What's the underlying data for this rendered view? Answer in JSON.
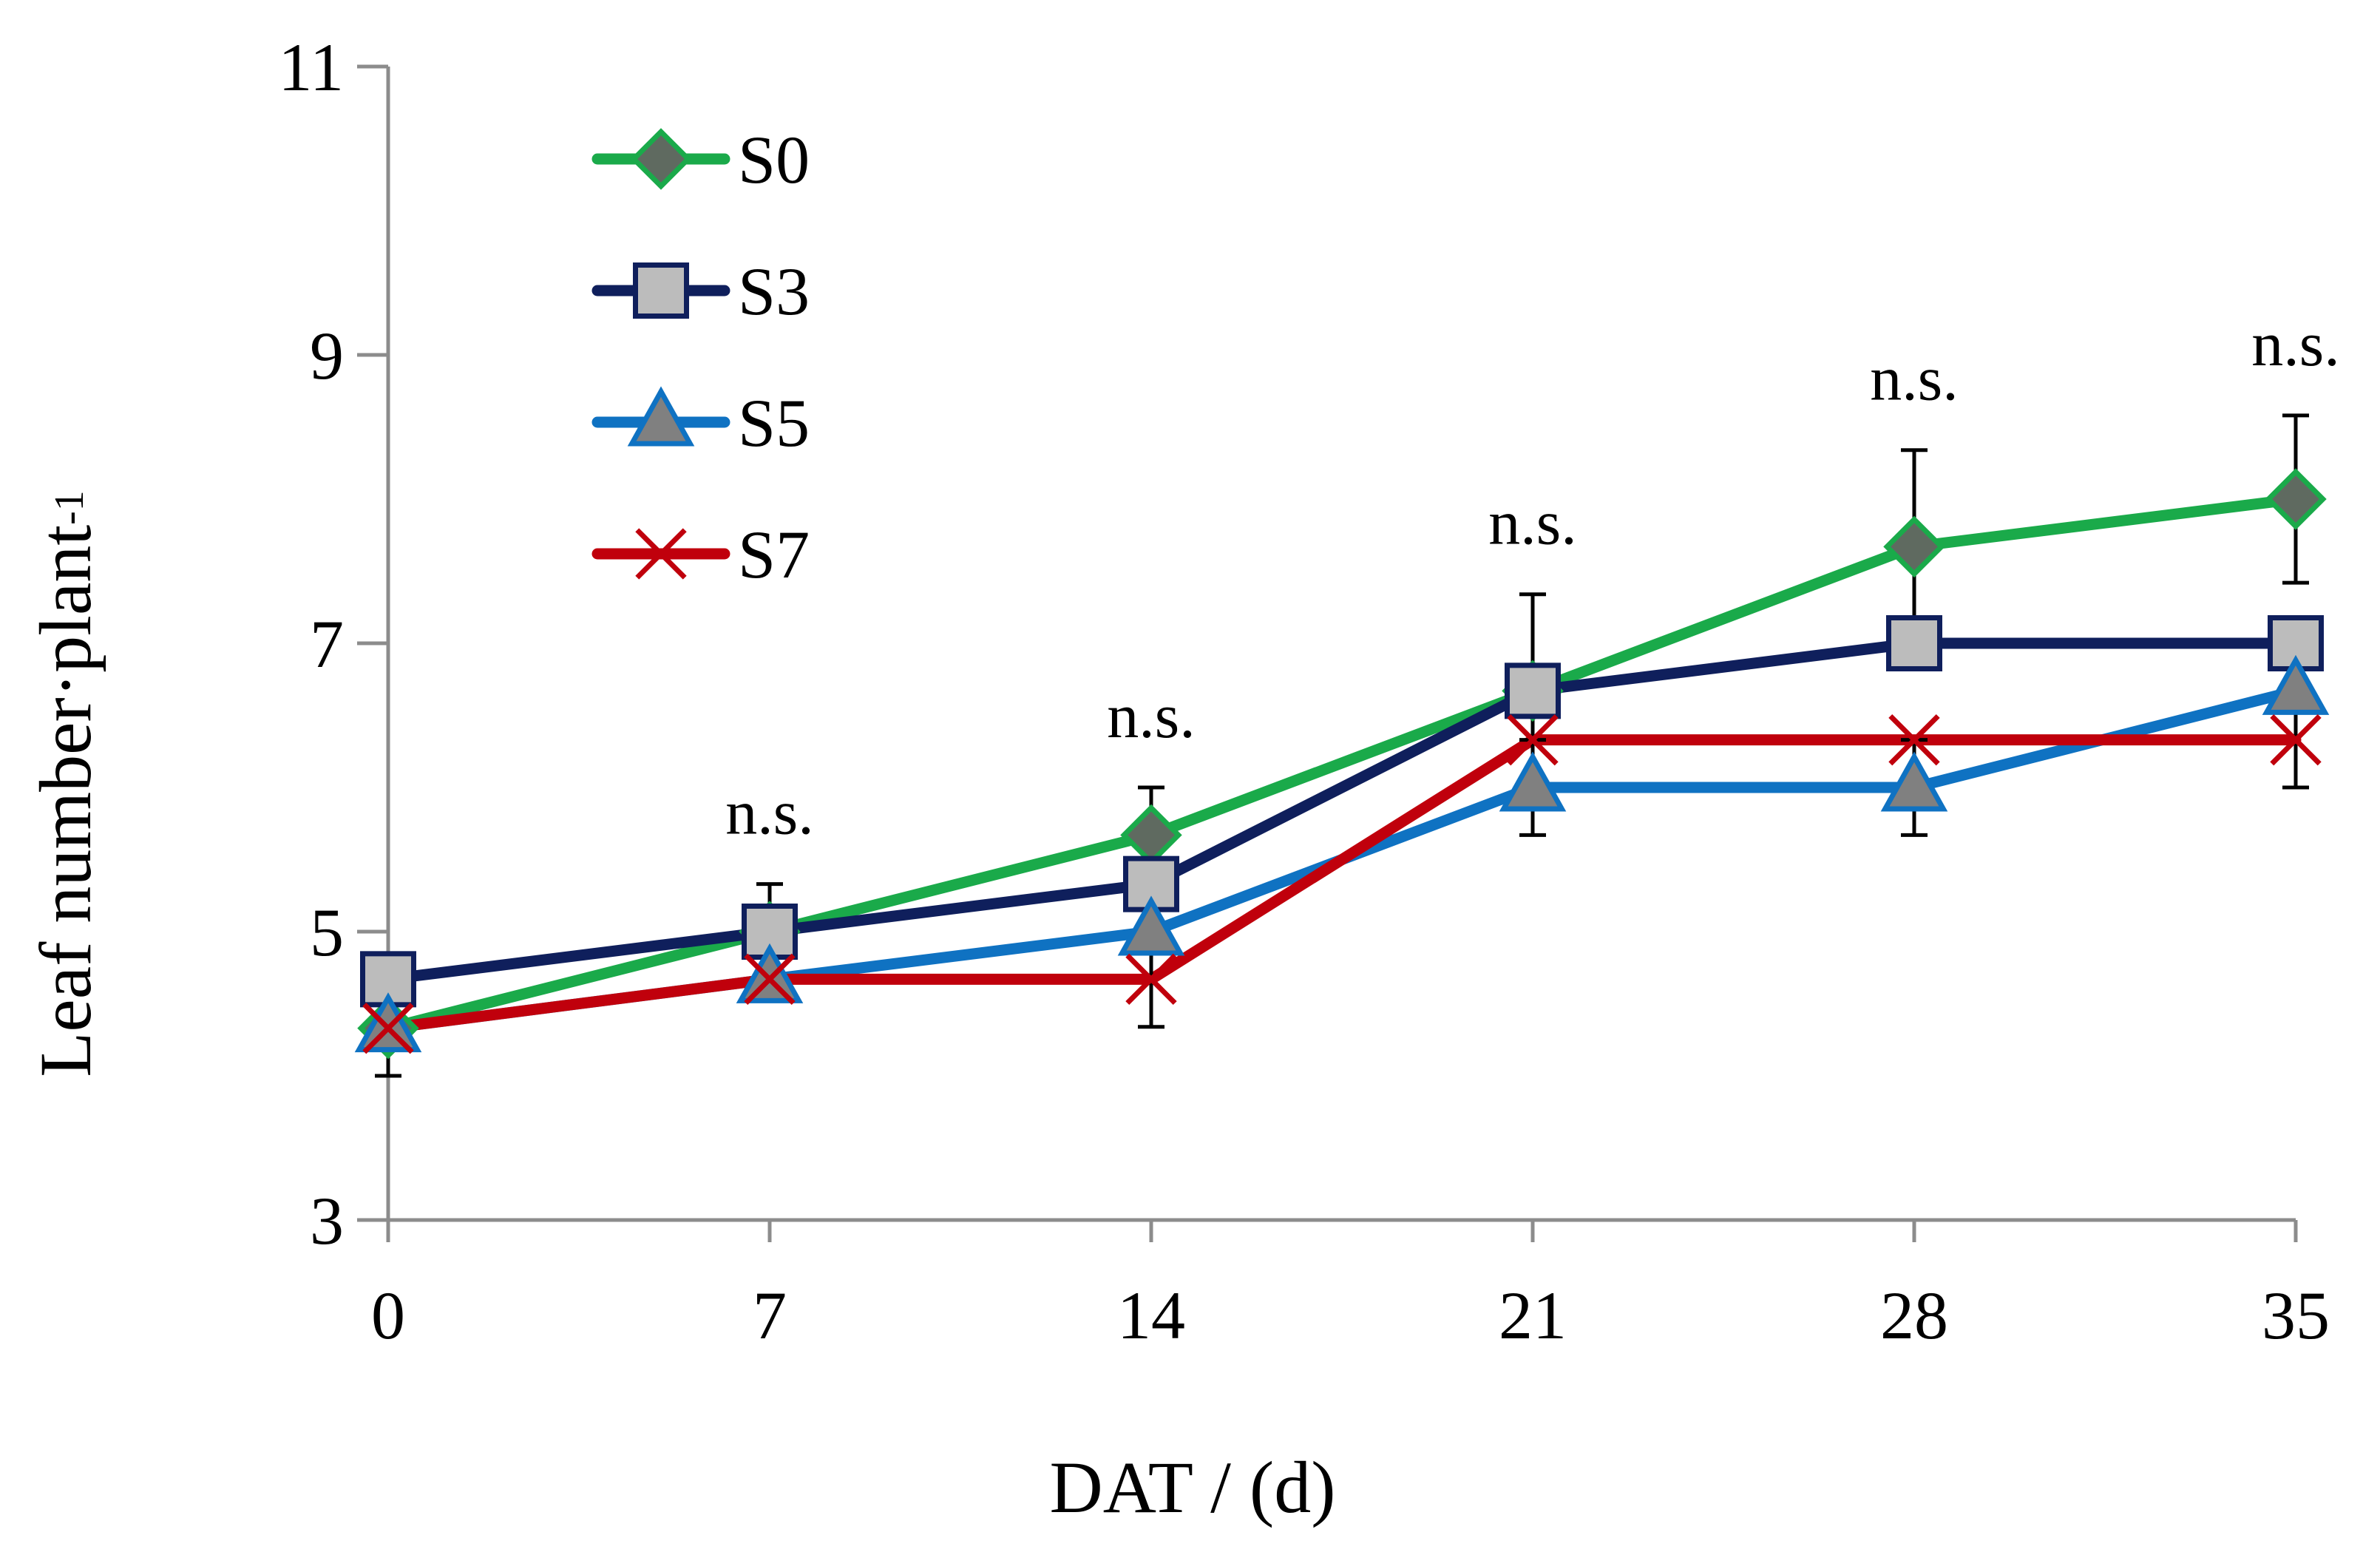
{
  "chart_data": {
    "type": "line",
    "xlabel": "DAT / (d)",
    "ylabel": "Leaf number·plant",
    "ylabel_superscript": "-1",
    "x": [
      0,
      7,
      14,
      21,
      28,
      35
    ],
    "xlim": [
      0,
      35
    ],
    "ylim": [
      3,
      11
    ],
    "yticks": [
      3,
      5,
      7,
      9,
      11
    ],
    "series": [
      {
        "name": "S0",
        "color": "#1aaa4a",
        "marker": "diamond",
        "marker_fill": "#5f6a60",
        "values": [
          4.33,
          5.0,
          5.67,
          6.67,
          7.67,
          8.0
        ],
        "errors": [
          0.33,
          0.33,
          0.33,
          0.67,
          0.67,
          0.58
        ]
      },
      {
        "name": "S3",
        "color": "#0f1f5c",
        "marker": "square",
        "marker_fill": "#bcbcbc",
        "values": [
          4.67,
          5.0,
          5.33,
          6.67,
          7.0,
          7.0
        ],
        "errors": [
          0,
          0,
          0,
          0,
          0,
          0
        ]
      },
      {
        "name": "S5",
        "color": "#0f72c2",
        "marker": "triangle",
        "marker_fill": "#808080",
        "values": [
          4.33,
          4.67,
          5.0,
          6.0,
          6.0,
          6.67
        ],
        "errors": [
          0,
          0,
          0,
          0.33,
          0.33,
          0
        ]
      },
      {
        "name": "S7",
        "color": "#c0000c",
        "marker": "x",
        "marker_fill": "#c0000c",
        "values": [
          4.33,
          4.67,
          4.67,
          6.33,
          6.33,
          6.33
        ],
        "errors": [
          0,
          0,
          0.33,
          0,
          0,
          0.33
        ]
      }
    ],
    "annotations": [
      {
        "x": 7,
        "text": "n.s."
      },
      {
        "x": 14,
        "text": "n.s."
      },
      {
        "x": 21,
        "text": "n.s."
      },
      {
        "x": 28,
        "text": "n.s."
      },
      {
        "x": 35,
        "text": "n.s."
      }
    ],
    "legend": {
      "placement": "top-left"
    },
    "grid": false
  }
}
